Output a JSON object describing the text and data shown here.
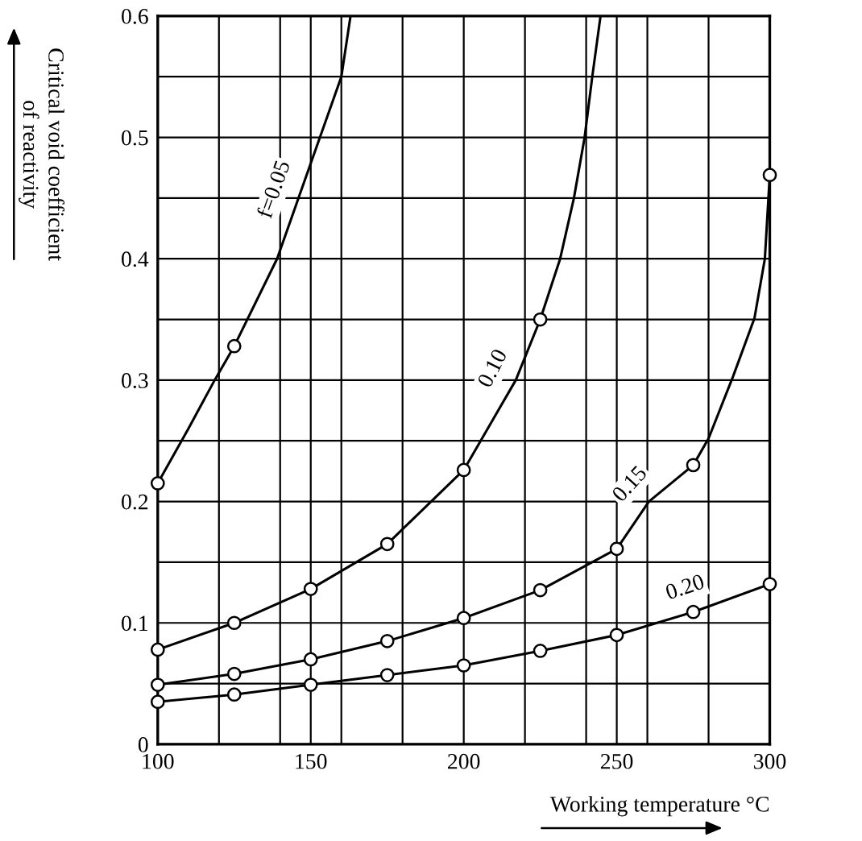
{
  "chart_data": {
    "type": "line",
    "xlabel": "Working temperature °C",
    "ylabel": "Critical void coefficient\nof reactivity",
    "xlim": [
      100,
      300
    ],
    "ylim": [
      0,
      0.6
    ],
    "xticks": [
      100,
      {
        "value": 120,
        "label": null
      },
      {
        "value": 140,
        "label": null
      },
      150,
      {
        "value": 160,
        "label": null
      },
      {
        "value": 180,
        "label": null
      },
      200,
      {
        "value": 220,
        "label": null
      },
      {
        "value": 240,
        "label": null
      },
      250,
      {
        "value": 260,
        "label": null
      },
      {
        "value": 280,
        "label": null
      },
      300
    ],
    "yticks": [
      0,
      {
        "value": 0.05,
        "label": null
      },
      0.1,
      {
        "value": 0.15,
        "label": null
      },
      0.2,
      {
        "value": 0.25,
        "label": null
      },
      0.3,
      {
        "value": 0.35,
        "label": null
      },
      0.4,
      {
        "value": 0.45,
        "label": null
      },
      0.5,
      {
        "value": 0.55,
        "label": null
      },
      0.6
    ],
    "grid": true,
    "line_style": "solid",
    "series": [
      {
        "color": "#000000",
        "marker": "none",
        "x": [
          100,
          110,
          118.6,
          125,
          139,
          146,
          153,
          160,
          163
        ],
        "values": [
          0.215,
          0.26,
          0.3,
          0.328,
          0.4,
          0.45,
          0.5,
          0.55,
          0.6
        ]
      },
      {
        "type": "scatter",
        "color": "#000000",
        "marker": "circle",
        "x": [
          100,
          125
        ],
        "values": [
          0.215,
          0.328
        ]
      },
      {
        "color": "#000000",
        "marker": "none",
        "x": [
          100,
          125,
          150,
          175,
          200,
          217,
          225,
          231.5,
          236,
          239.5,
          242,
          244.7
        ],
        "values": [
          0.078,
          0.1,
          0.128,
          0.165,
          0.226,
          0.3,
          0.35,
          0.4,
          0.45,
          0.5,
          0.55,
          0.6
        ]
      },
      {
        "type": "scatter",
        "color": "#000000",
        "marker": "circle",
        "x": [
          100,
          125,
          150,
          175,
          200,
          225
        ],
        "values": [
          0.078,
          0.1,
          0.128,
          0.165,
          0.226,
          0.35
        ]
      },
      {
        "color": "#000000",
        "marker": "none",
        "x": [
          100,
          125,
          150,
          175,
          200,
          225,
          250,
          260.5,
          275,
          280,
          288,
          295,
          298.4,
          300
        ],
        "values": [
          0.049,
          0.058,
          0.07,
          0.085,
          0.104,
          0.127,
          0.161,
          0.2,
          0.23,
          0.252,
          0.303,
          0.351,
          0.4,
          0.469
        ]
      },
      {
        "type": "scatter",
        "color": "#000000",
        "marker": "circle",
        "x": [
          100,
          125,
          150,
          175,
          200,
          225,
          250,
          275,
          300
        ],
        "values": [
          0.049,
          0.058,
          0.07,
          0.085,
          0.104,
          0.127,
          0.161,
          0.23,
          0.469
        ]
      },
      {
        "color": "#000000",
        "marker": "none",
        "x": [
          100,
          125,
          150,
          175,
          200,
          225,
          250,
          275,
          300
        ],
        "values": [
          0.035,
          0.041,
          0.049,
          0.057,
          0.065,
          0.077,
          0.09,
          0.109,
          0.132
        ]
      },
      {
        "type": "scatter",
        "color": "#000000",
        "marker": "circle",
        "x": [
          100,
          125,
          150,
          175,
          200,
          225,
          250,
          275,
          300
        ],
        "values": [
          0.035,
          0.041,
          0.049,
          0.057,
          0.065,
          0.077,
          0.09,
          0.109,
          0.132
        ]
      }
    ],
    "annotations": [
      {
        "text": "f=0.05",
        "x": 146,
        "y": 0.45
      },
      {
        "text": "0.10",
        "x": 217,
        "y": 0.3
      },
      {
        "text": "0.15",
        "x": 260.5,
        "y": 0.2
      },
      {
        "text": "0.20",
        "x": 275,
        "y": 0.109
      }
    ]
  }
}
